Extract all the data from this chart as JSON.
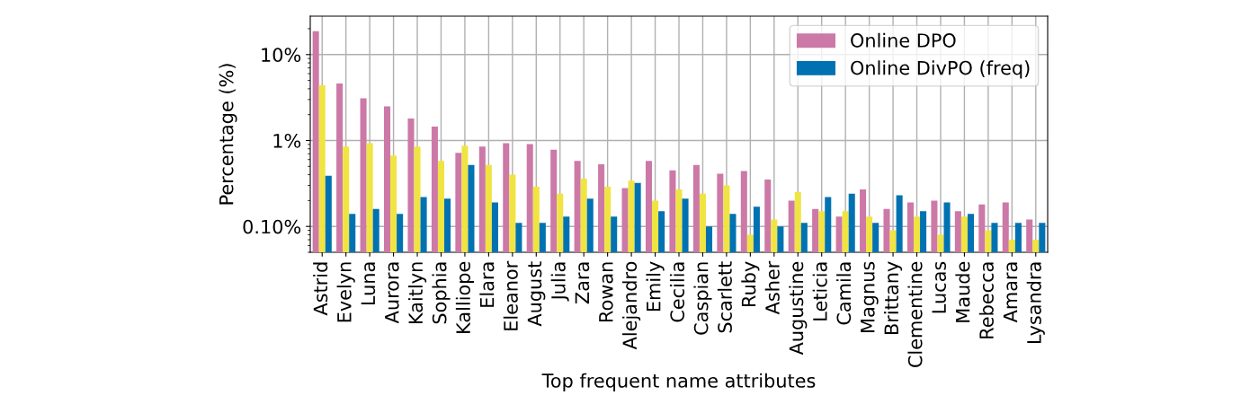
{
  "chart_data": {
    "type": "bar",
    "xlabel": "Top frequent name attributes",
    "ylabel": "Percentage (%)",
    "categories": [
      "Astrid",
      "Evelyn",
      "Luna",
      "Aurora",
      "Kaitlyn",
      "Sophia",
      "Kalliope",
      "Elara",
      "Eleanor",
      "August",
      "Julia",
      "Zara",
      "Rowan",
      "Alejandro",
      "Emily",
      "Cecilia",
      "Caspian",
      "Scarlett",
      "Ruby",
      "Asher",
      "Augustine",
      "Leticia",
      "Camila",
      "Magnus",
      "Brittany",
      "Clementine",
      "Lucas",
      "Maude",
      "Rebecca",
      "Amara",
      "Lysandra"
    ],
    "series": [
      {
        "name": "Online DPO",
        "color": "#cc79a7",
        "values": [
          18.7,
          4.6,
          3.1,
          2.5,
          1.8,
          1.45,
          0.72,
          0.85,
          0.93,
          0.91,
          0.78,
          0.58,
          0.53,
          0.28,
          0.58,
          0.45,
          0.52,
          0.41,
          0.44,
          0.35,
          0.2,
          0.16,
          0.13,
          0.27,
          0.16,
          0.19,
          0.2,
          0.15,
          0.18,
          0.19,
          0.12
        ]
      },
      {
        "color": "#f0e442",
        "values": [
          4.4,
          0.85,
          0.93,
          0.67,
          0.85,
          0.58,
          0.87,
          0.52,
          0.4,
          0.29,
          0.24,
          0.36,
          0.29,
          0.34,
          0.2,
          0.27,
          0.24,
          0.3,
          0.08,
          0.12,
          0.25,
          0.15,
          0.15,
          0.13,
          0.09,
          0.13,
          0.08,
          0.13,
          0.09,
          0.07,
          0.07
        ]
      },
      {
        "name": "Online DivPO (freq)",
        "color": "#0072b2",
        "values": [
          0.39,
          0.14,
          0.16,
          0.14,
          0.22,
          0.21,
          0.52,
          0.19,
          0.11,
          0.11,
          0.13,
          0.21,
          0.13,
          0.32,
          0.15,
          0.21,
          0.1,
          0.14,
          0.17,
          0.1,
          0.11,
          0.22,
          0.24,
          0.11,
          0.23,
          0.15,
          0.19,
          0.14,
          0.11,
          0.11,
          0.11
        ]
      }
    ],
    "log": true,
    "ylim": [
      0.05,
      28
    ],
    "yticks": [
      {
        "value": 0.1,
        "label": "0.10%"
      },
      {
        "value": 1,
        "label": "1%"
      },
      {
        "value": 10,
        "label": "10%"
      }
    ],
    "grid": true,
    "legend": "top right"
  }
}
